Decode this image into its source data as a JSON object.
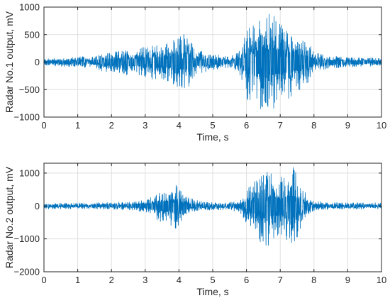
{
  "chart_data": [
    {
      "type": "line",
      "xlabel": "Time, s",
      "ylabel": "Radar No.1 output, mV",
      "xlim": [
        0,
        10
      ],
      "ylim": [
        -1000,
        1000
      ],
      "xticks": [
        0,
        1,
        2,
        3,
        4,
        5,
        6,
        7,
        8,
        9,
        10
      ],
      "yticks": [
        -1000,
        -500,
        0,
        500,
        1000
      ],
      "grid": true,
      "series_color": "#0072bd",
      "series": [
        {
          "x": [
            0,
            0.5,
            1,
            1.5,
            1.8,
            2,
            2.5,
            3,
            3.5,
            3.8,
            4,
            4.2,
            4.3,
            4.5,
            5,
            5.5,
            5.8,
            6,
            6.3,
            6.5,
            6.7,
            7,
            7.3,
            7.5,
            7.8,
            8,
            8.5,
            9,
            9.5,
            10
          ],
          "y": [
            60,
            80,
            100,
            100,
            200,
            180,
            230,
            280,
            330,
            400,
            450,
            600,
            480,
            230,
            140,
            100,
            220,
            600,
            750,
            900,
            900,
            780,
            650,
            500,
            420,
            180,
            110,
            90,
            80,
            80
          ]
        },
        {
          "x": [
            0,
            0.5,
            1,
            1.5,
            1.8,
            2,
            2.5,
            3,
            3.5,
            3.8,
            4,
            4.2,
            4.3,
            4.5,
            5,
            5.5,
            5.8,
            6,
            6.3,
            6.5,
            6.7,
            7,
            7.3,
            7.5,
            7.8,
            8,
            8.5,
            9,
            9.5,
            10
          ],
          "y": [
            -60,
            -80,
            -100,
            -100,
            -200,
            -180,
            -250,
            -300,
            -330,
            -420,
            -480,
            -500,
            -480,
            -230,
            -140,
            -100,
            -230,
            -700,
            -800,
            -920,
            -880,
            -800,
            -650,
            -550,
            -420,
            -180,
            -110,
            -90,
            -80,
            -80
          ]
        }
      ]
    },
    {
      "type": "line",
      "xlabel": "Time, s",
      "ylabel": "Radar No.2 output, mV",
      "xlim": [
        0,
        10
      ],
      "ylim": [
        -2000,
        1300
      ],
      "xticks": [
        0,
        1,
        2,
        3,
        4,
        5,
        6,
        7,
        8,
        9,
        10
      ],
      "yticks": [
        -2000,
        -1000,
        0,
        1000
      ],
      "grid": true,
      "series_color": "#0072bd",
      "series": [
        {
          "x": [
            0,
            0.5,
            1,
            1.5,
            2,
            2.5,
            3,
            3.3,
            3.6,
            3.9,
            4.1,
            4.3,
            4.6,
            5,
            5.5,
            5.8,
            6,
            6.3,
            6.5,
            6.8,
            7,
            7.2,
            7.4,
            7.6,
            7.8,
            8,
            8.5,
            9,
            9.5,
            10
          ],
          "y": [
            100,
            90,
            90,
            100,
            110,
            120,
            180,
            350,
            550,
            650,
            400,
            250,
            150,
            120,
            120,
            200,
            500,
            800,
            1100,
            1050,
            900,
            850,
            1250,
            700,
            300,
            150,
            110,
            100,
            100,
            100
          ]
        },
        {
          "x": [
            0,
            0.5,
            1,
            1.5,
            2,
            2.5,
            3,
            3.3,
            3.6,
            3.9,
            4.1,
            4.3,
            4.6,
            5,
            5.5,
            5.8,
            6,
            6.3,
            6.5,
            6.8,
            7,
            7.2,
            7.4,
            7.6,
            7.8,
            8,
            8.5,
            9,
            9.5,
            10
          ],
          "y": [
            -100,
            -90,
            -90,
            -100,
            -110,
            -120,
            -180,
            -400,
            -600,
            -750,
            -450,
            -250,
            -150,
            -120,
            -120,
            -200,
            -550,
            -900,
            -1400,
            -1100,
            -1000,
            -1050,
            -1300,
            -700,
            -300,
            -150,
            -110,
            -100,
            -100,
            -100
          ]
        }
      ]
    }
  ]
}
